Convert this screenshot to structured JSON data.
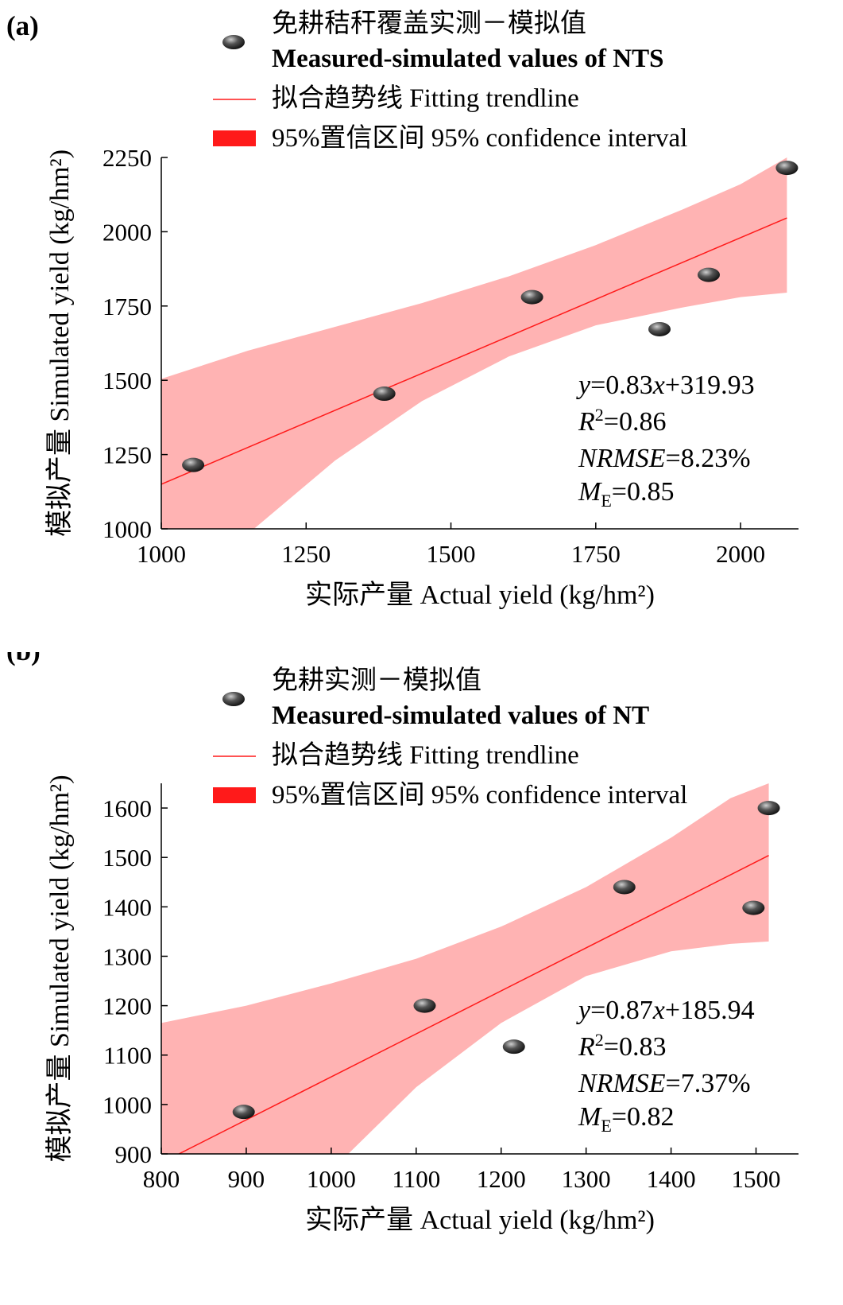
{
  "chart_data": [
    {
      "panel": "(a)",
      "type": "scatter",
      "xlabel": "实际产量 Actual yield (kg/hm²)",
      "ylabel": "模拟产量 Simulated yield (kg/hm²)",
      "xlim": [
        1000,
        2100
      ],
      "ylim": [
        1000,
        2250
      ],
      "xticks": [
        1000,
        1250,
        1500,
        1750,
        2000
      ],
      "yticks": [
        1000,
        1250,
        1500,
        1750,
        2000,
        2250
      ],
      "legend": {
        "points_zh": "免耕秸秆覆盖实测－模拟值",
        "points_en": "Measured-simulated values of NTS",
        "line": "拟合趋势线 Fitting trendline",
        "band": "95%置信区间 95% confidence interval",
        "position": "top"
      },
      "points": [
        {
          "x": 1055,
          "y": 1215
        },
        {
          "x": 1385,
          "y": 1455
        },
        {
          "x": 1640,
          "y": 1780
        },
        {
          "x": 1860,
          "y": 1672
        },
        {
          "x": 1945,
          "y": 1855
        },
        {
          "x": 2080,
          "y": 2215
        }
      ],
      "fit": {
        "slope": 0.83,
        "intercept": 319.93,
        "x_range": [
          1000,
          2080
        ]
      },
      "ci_upper": [
        [
          1000,
          1505
        ],
        [
          1150,
          1600
        ],
        [
          1300,
          1680
        ],
        [
          1450,
          1760
        ],
        [
          1600,
          1850
        ],
        [
          1750,
          1955
        ],
        [
          1900,
          2075
        ],
        [
          2000,
          2160
        ],
        [
          2080,
          2250
        ]
      ],
      "ci_lower": [
        [
          1160,
          1000
        ],
        [
          1300,
          1230
        ],
        [
          1450,
          1430
        ],
        [
          1600,
          1580
        ],
        [
          1750,
          1685
        ],
        [
          1900,
          1745
        ],
        [
          2000,
          1780
        ],
        [
          2080,
          1795
        ]
      ],
      "equation_terms": {
        "y": "y",
        "eq": "=",
        "val1": "0.83",
        "x": "x",
        "plus": "+",
        "val2": "319.93"
      },
      "r2_terms": {
        "R": "R",
        "sup": "2",
        "eq": "=",
        "val": "0.86"
      },
      "nrmse_terms": {
        "NRMSE": "NRMSE",
        "eq": "=",
        "val": "8.23%"
      },
      "me_terms": {
        "M": "M",
        "sub": "E",
        "eq": "=",
        "val": "0.85"
      }
    },
    {
      "panel": "(b)",
      "type": "scatter",
      "xlabel": "实际产量 Actual yield (kg/hm²)",
      "ylabel": "模拟产量 Simulated yield (kg/hm²)",
      "xlim": [
        800,
        1550
      ],
      "ylim": [
        900,
        1650
      ],
      "xticks": [
        800,
        900,
        1000,
        1100,
        1200,
        1300,
        1400,
        1500
      ],
      "yticks": [
        900,
        1000,
        1100,
        1200,
        1300,
        1400,
        1500,
        1600
      ],
      "legend": {
        "points_zh": "免耕实测－模拟值",
        "points_en": "Measured-simulated values of NT",
        "line": "拟合趋势线 Fitting trendline",
        "band": "95%置信区间 95% confidence interval",
        "position": "top"
      },
      "points": [
        {
          "x": 897,
          "y": 985
        },
        {
          "x": 1110,
          "y": 1200
        },
        {
          "x": 1215,
          "y": 1117
        },
        {
          "x": 1345,
          "y": 1440
        },
        {
          "x": 1497,
          "y": 1398
        },
        {
          "x": 1515,
          "y": 1600
        }
      ],
      "fit": {
        "slope": 0.87,
        "intercept": 185.94,
        "x_range": [
          820,
          1515
        ]
      },
      "ci_upper": [
        [
          800,
          1165
        ],
        [
          900,
          1200
        ],
        [
          1000,
          1245
        ],
        [
          1100,
          1295
        ],
        [
          1200,
          1360
        ],
        [
          1300,
          1440
        ],
        [
          1400,
          1540
        ],
        [
          1470,
          1620
        ],
        [
          1515,
          1650
        ]
      ],
      "ci_lower": [
        [
          1020,
          900
        ],
        [
          1100,
          1035
        ],
        [
          1200,
          1165
        ],
        [
          1300,
          1260
        ],
        [
          1400,
          1310
        ],
        [
          1470,
          1325
        ],
        [
          1515,
          1330
        ]
      ],
      "equation_terms": {
        "y": "y",
        "eq": "=",
        "val1": "0.87",
        "x": "x",
        "plus": "+",
        "val2": "185.94"
      },
      "r2_terms": {
        "R": "R",
        "sup": "2",
        "eq": "=",
        "val": "0.83"
      },
      "nrmse_terms": {
        "NRMSE": "NRMSE",
        "eq": "=",
        "val": "7.37%"
      },
      "me_terms": {
        "M": "M",
        "sub": "E",
        "eq": "=",
        "val": "0.82"
      }
    }
  ],
  "colors": {
    "band": "#ffb3b3",
    "line": "#ff1a1a",
    "legend_band": "#ff1a1a",
    "marker_dark": "#111111",
    "marker_light": "#cfcfcf"
  }
}
